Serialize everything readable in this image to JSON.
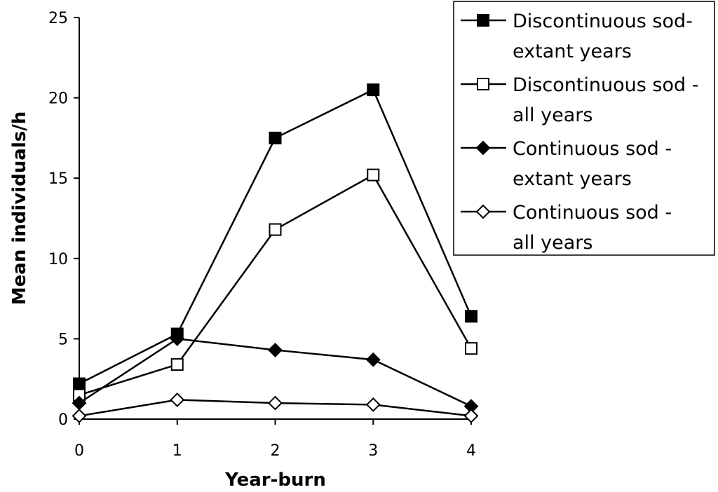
{
  "chart_data": {
    "type": "line",
    "xlabel": "Year-burn",
    "ylabel": "Mean individuals/h",
    "x": [
      0,
      1,
      2,
      3,
      4
    ],
    "x_ticks": [
      "0",
      "1",
      "2",
      "3",
      "4"
    ],
    "ylim": [
      0,
      25
    ],
    "y_ticks": [
      "0",
      "5",
      "10",
      "15",
      "20",
      "25"
    ],
    "grid": false,
    "legend_position": "top-right",
    "series": [
      {
        "name_lines": [
          "Discontinuous sod-",
          "extant years"
        ],
        "marker": "square-filled",
        "values": [
          2.2,
          5.3,
          17.5,
          20.5,
          6.4
        ]
      },
      {
        "name_lines": [
          "Discontinuous sod -",
          "all years"
        ],
        "marker": "square-open",
        "values": [
          1.5,
          3.4,
          11.8,
          15.2,
          4.4
        ]
      },
      {
        "name_lines": [
          "Continuous sod -",
          "extant years"
        ],
        "marker": "diamond-filled",
        "values": [
          1.0,
          5.0,
          4.3,
          3.7,
          0.8
        ]
      },
      {
        "name_lines": [
          "Continuous sod -",
          "all years"
        ],
        "marker": "diamond-open",
        "values": [
          0.2,
          1.2,
          1.0,
          0.9,
          0.2
        ]
      }
    ]
  }
}
